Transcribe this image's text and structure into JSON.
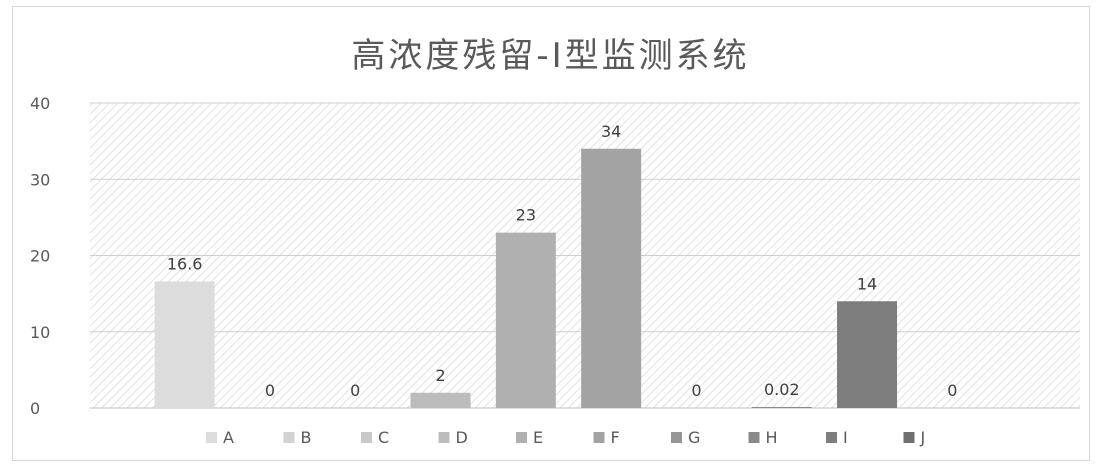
{
  "chart_data": {
    "type": "bar",
    "title": "高浓度残留-I型监测系统",
    "categories": [
      "A",
      "B",
      "C",
      "D",
      "E",
      "F",
      "G",
      "H",
      "I",
      "J"
    ],
    "values": [
      16.6,
      0,
      0,
      2,
      23,
      34,
      0,
      0.02,
      14,
      0
    ],
    "data_labels": [
      "16.6",
      "0",
      "0",
      "2",
      "23",
      "34",
      "0",
      "0.02",
      "14",
      "0"
    ],
    "ylim": [
      0,
      40
    ],
    "yticks": [
      "0",
      "10",
      "20",
      "30",
      "40"
    ],
    "grid": true,
    "legend": "bottom",
    "colors": [
      "#dcdcdc",
      "#d2d2d2",
      "#c8c8c8",
      "#bcbcbc",
      "#b0b0b0",
      "#a3a3a3",
      "#969696",
      "#8a8a8a",
      "#7d7d7d",
      "#6f6f6f"
    ]
  }
}
